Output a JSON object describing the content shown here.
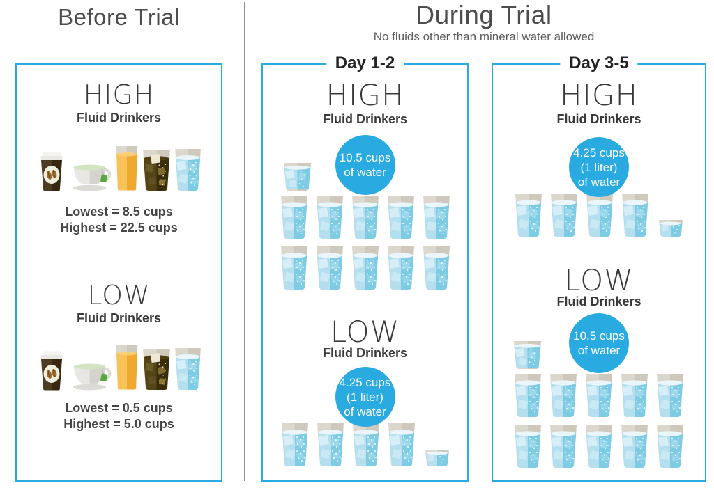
{
  "colors": {
    "accent_blue": "#29abe2",
    "panel_border": "#29abe2",
    "divider_gray": "#8f8f8f"
  },
  "before_trial": {
    "title": "Before Trial",
    "sections": [
      {
        "level": "HIGH",
        "subtitle": "Fluid Drinkers",
        "drinks": [
          "coffee",
          "tea",
          "juice",
          "cola",
          "water"
        ],
        "stats": [
          "Lowest = 8.5 cups",
          "Highest = 22.5 cups"
        ]
      },
      {
        "level": "LOW",
        "subtitle": "Fluid Drinkers",
        "drinks": [
          "coffee",
          "tea",
          "juice",
          "cola",
          "water"
        ],
        "stats": [
          "Lowest = 0.5 cups",
          "Highest = 5.0 cups"
        ]
      }
    ]
  },
  "during_trial": {
    "title": "During Trial",
    "subtitle": "No fluids other than mineral water allowed",
    "days": [
      {
        "label": "Day 1-2",
        "sections": [
          {
            "level": "HIGH",
            "subtitle": "Fluid Drinkers",
            "badge_lines": [
              "10.5 cups",
              "of water"
            ],
            "glasses": {
              "lead_half": 1,
              "rows": [
                5,
                5
              ],
              "tail_quarter": 0,
              "total_cups": 10.5
            }
          },
          {
            "level": "LOW",
            "subtitle": "Fluid Drinkers",
            "badge_lines": [
              "4.25 cups",
              "(1 liter)",
              "of water"
            ],
            "glasses": {
              "lead_half": 0,
              "rows": [
                4
              ],
              "tail_quarter": 1,
              "total_cups": 4.25
            }
          }
        ]
      },
      {
        "label": "Day 3-5",
        "sections": [
          {
            "level": "HIGH",
            "subtitle": "Fluid Drinkers",
            "badge_lines": [
              "4.25 cups",
              "(1 liter)",
              "of water"
            ],
            "glasses": {
              "lead_half": 0,
              "rows": [
                4
              ],
              "tail_quarter": 1,
              "total_cups": 4.25
            }
          },
          {
            "level": "LOW",
            "subtitle": "Fluid Drinkers",
            "badge_lines": [
              "10.5 cups",
              "of water"
            ],
            "glasses": {
              "lead_half": 1,
              "rows": [
                5,
                5
              ],
              "tail_quarter": 0,
              "total_cups": 10.5
            }
          }
        ]
      }
    ]
  }
}
